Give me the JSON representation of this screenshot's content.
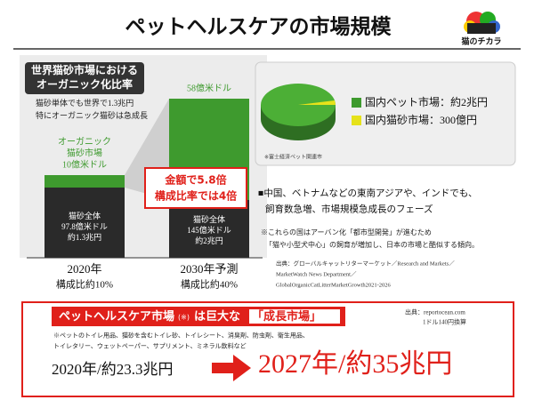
{
  "header": {
    "title": "ペットヘルスケアの市場規模",
    "logo": "猫のチカラ"
  },
  "left_chart": {
    "heading": [
      "世界猫砂市場における",
      "オーガニック化比率"
    ],
    "notes": [
      "猫砂単体でも世界で1.3兆円",
      "特にオーガニック猫砂は急成長"
    ],
    "organic_label": [
      "オーガニック",
      "猫砂市場",
      "10億米ドル"
    ],
    "organic_2030_label": "58億米ドル",
    "callout": [
      "金額で5.8倍",
      "構成比率では4倍"
    ],
    "bar_2020_label": [
      "猫砂全体",
      "97.8億米ドル",
      "約1.3兆円"
    ],
    "bar_2030_label": [
      "猫砂全体",
      "145億米ドル",
      "約2兆円"
    ],
    "x_labels": [
      [
        "2020年",
        "構成比約10%"
      ],
      [
        "2030年予測",
        "構成比約40%"
      ]
    ]
  },
  "pie_panel": {
    "legend": [
      "国内ペット市場：約2兆円",
      "国内猫砂市場：300億円"
    ],
    "source": "※富士経済ペット関連市"
  },
  "body": {
    "bullet": [
      "■中国、ベトナムなどの東南アジアや、インドでも、",
      "飼育数急増、市場規模急成長のフェーズ"
    ],
    "note": [
      "※これらの国はアーバン化「都市型開発」が進むため",
      "「猫や小型犬中心」の飼育が増加し、日本の市場と酷似する傾向。"
    ],
    "sources": [
      "出典：グローバルキャットリターマーケット／Research and Markets／",
      "MarketWatch News Department／",
      "GlobalOrganicCatLitterMarketGrowth2021-2026"
    ]
  },
  "footer": {
    "banner": [
      "ペットヘルスケア市場",
      "(※)",
      "は巨大な",
      "「成長市場」"
    ],
    "source": [
      "出典：reportocean.com",
      "1ドル140円換算"
    ],
    "footnote": [
      "※ペットのトイレ用品、猫砂を含むトイレ砂、トイレシート、消臭剤、防虫剤、衛生用品、",
      "トイレタリー、ウェットペーパー、サプリメント、ミネラル飲料など"
    ],
    "from": "2020年/約23.3兆円",
    "to": "2027年/約35兆円"
  }
}
